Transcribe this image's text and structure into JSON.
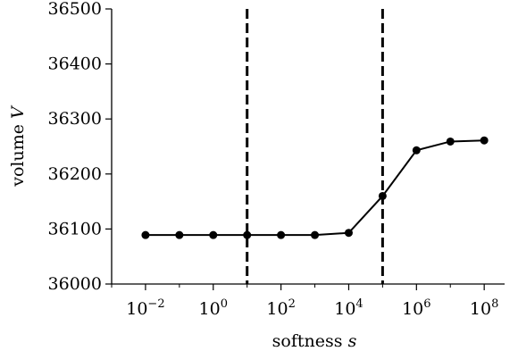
{
  "chart_data": {
    "type": "line",
    "xlabel": "softness",
    "xlabel_var": "s",
    "ylabel": "volume",
    "ylabel_var": "V",
    "x_scale": "log",
    "xlim": [
      0.001,
      400000000
    ],
    "ylim": [
      36000,
      36500
    ],
    "y_ticks": [
      36000,
      36100,
      36200,
      36300,
      36400,
      36500
    ],
    "x_ticks": [
      {
        "value": 0.01,
        "base": "10",
        "exp": "−2"
      },
      {
        "value": 1,
        "base": "10",
        "exp": "0"
      },
      {
        "value": 100,
        "base": "10",
        "exp": "2"
      },
      {
        "value": 10000,
        "base": "10",
        "exp": "4"
      },
      {
        "value": 1000000,
        "base": "10",
        "exp": "6"
      },
      {
        "value": 100000000,
        "base": "10",
        "exp": "8"
      }
    ],
    "vlines": [
      10,
      100000
    ],
    "series": [
      {
        "color": "#000000",
        "marker": "circle",
        "x": [
          0.01,
          0.1,
          1,
          10,
          100,
          1000,
          10000,
          100000,
          1000000,
          10000000,
          100000000
        ],
        "y": [
          36089,
          36089,
          36089,
          36089,
          36089,
          36089,
          36093,
          36160,
          36243,
          36259,
          36261
        ]
      }
    ],
    "grid": false,
    "legend": "none"
  }
}
